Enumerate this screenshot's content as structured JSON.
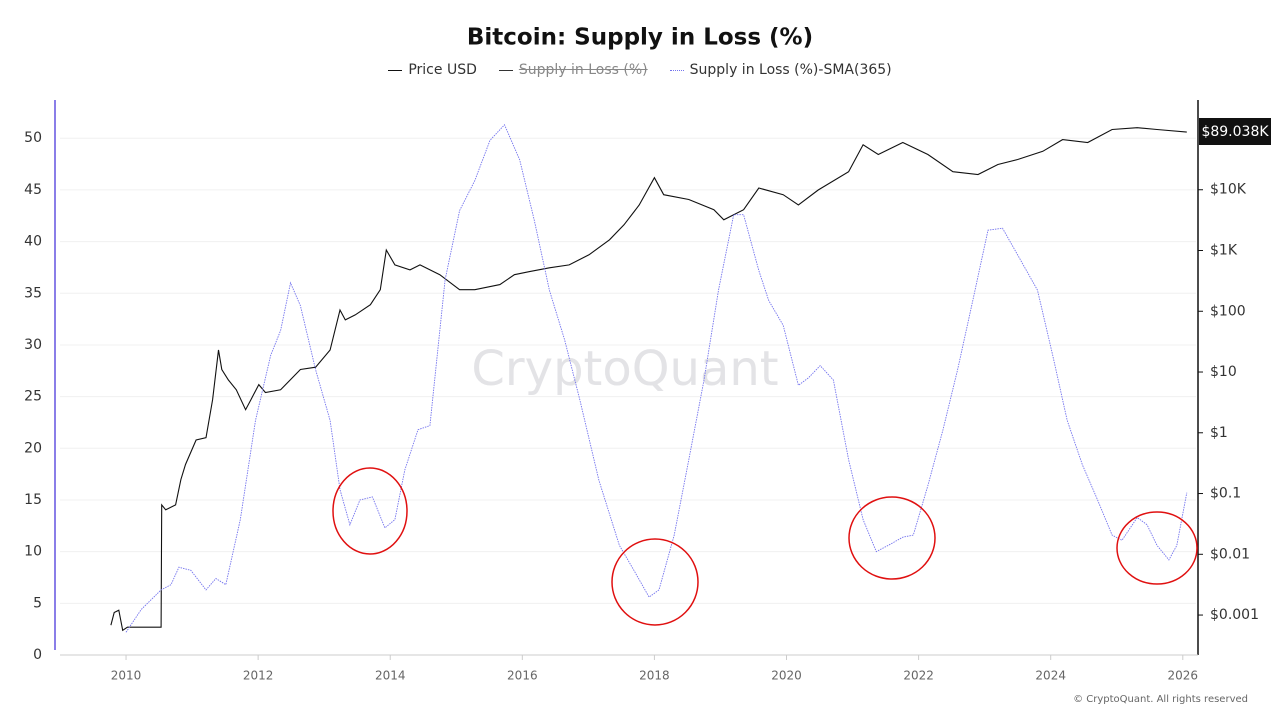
{
  "chart_data": {
    "type": "line",
    "title": "Bitcoin: Supply in Loss (%)",
    "watermark": "CryptoQuant",
    "copyright": "© CryptoQuant. All rights reserved",
    "last_price_label": "$89.038K",
    "xlim": [
      2009,
      2026.2
    ],
    "xticks": [
      2010,
      2012,
      2014,
      2016,
      2018,
      2020,
      2022,
      2024,
      2026
    ],
    "ylim": [
      0,
      53.7
    ],
    "yticks": [
      0,
      5,
      10,
      15,
      20,
      25,
      30,
      35,
      40,
      45,
      50
    ],
    "y2lim": [
      0.00022,
      300000
    ],
    "y2log": true,
    "y2ticks": [
      {
        "value": 0.001,
        "label": "$0.001"
      },
      {
        "value": 0.01,
        "label": "$0.01"
      },
      {
        "value": 0.1,
        "label": "$0.1"
      },
      {
        "value": 1,
        "label": "$1"
      },
      {
        "value": 10,
        "label": "$10"
      },
      {
        "value": 100,
        "label": "$100"
      },
      {
        "value": 1000,
        "label": "$1K"
      },
      {
        "value": 10000,
        "label": "$10K"
      }
    ],
    "grid": true,
    "series": [
      {
        "name": "Price USD",
        "color": "#111111",
        "axis": "y2",
        "x": [
          2009.77,
          2009.82,
          2009.89,
          2009.95,
          2010.02,
          2010.53,
          2010.54,
          2010.6,
          2010.75,
          2010.83,
          2010.9,
          2011.06,
          2011.21,
          2011.31,
          2011.4,
          2011.45,
          2011.55,
          2011.67,
          2011.81,
          2011.89,
          2012.01,
          2012.11,
          2012.34,
          2012.64,
          2012.87,
          2013.09,
          2013.24,
          2013.32,
          2013.47,
          2013.7,
          2013.85,
          2013.94,
          2014.07,
          2014.3,
          2014.45,
          2014.75,
          2015.05,
          2015.28,
          2015.66,
          2015.88,
          2016.11,
          2016.41,
          2016.71,
          2017.01,
          2017.32,
          2017.54,
          2017.77,
          2018.0,
          2018.14,
          2018.52,
          2018.9,
          2019.05,
          2019.35,
          2019.58,
          2019.95,
          2020.18,
          2020.48,
          2020.94,
          2021.16,
          2021.39,
          2021.76,
          2022.14,
          2022.52,
          2022.9,
          2023.2,
          2023.5,
          2023.88,
          2024.18,
          2024.56,
          2024.93,
          2025.31,
          2025.61,
          2026.06
        ],
        "values": [
          0.00068,
          0.0011,
          0.0012,
          0.00056,
          0.00063,
          0.00063,
          0.065,
          0.054,
          0.065,
          0.17,
          0.3,
          0.76,
          0.83,
          3.5,
          23,
          11,
          7.4,
          5.1,
          2.4,
          3.5,
          6.2,
          4.6,
          5.1,
          11,
          12,
          23,
          105,
          72,
          87,
          128,
          226,
          1020,
          580,
          480,
          580,
          400,
          226,
          226,
          275,
          400,
          450,
          520,
          580,
          850,
          1500,
          2650,
          5600,
          15800,
          8300,
          6900,
          4700,
          3200,
          4700,
          10700,
          8300,
          5600,
          9900,
          19800,
          55000,
          38000,
          60000,
          38000,
          19800,
          17800,
          26000,
          31500,
          43000,
          67000,
          60000,
          98000,
          105000,
          98000,
          89038
        ]
      },
      {
        "name": "Supply in Loss (%)",
        "color": "#333333",
        "visible": false
      },
      {
        "name": "Supply in Loss (%)-SMA(365)",
        "color": "#7474ee",
        "dashed": true,
        "x": [
          2010.0,
          2010.23,
          2010.53,
          2010.68,
          2010.8,
          2010.98,
          2011.21,
          2011.36,
          2011.51,
          2011.73,
          2011.96,
          2012.19,
          2012.34,
          2012.49,
          2012.64,
          2012.87,
          2013.09,
          2013.24,
          2013.39,
          2013.54,
          2013.73,
          2013.92,
          2014.07,
          2014.22,
          2014.42,
          2014.6,
          2014.83,
          2015.05,
          2015.28,
          2015.51,
          2015.73,
          2015.96,
          2016.18,
          2016.41,
          2016.64,
          2016.87,
          2017.16,
          2017.47,
          2017.69,
          2017.92,
          2018.07,
          2018.3,
          2018.52,
          2018.75,
          2018.97,
          2019.2,
          2019.35,
          2019.58,
          2019.73,
          2019.95,
          2020.18,
          2020.33,
          2020.51,
          2020.71,
          2020.94,
          2021.16,
          2021.36,
          2021.54,
          2021.76,
          2021.92,
          2022.14,
          2022.37,
          2022.59,
          2022.82,
          2023.05,
          2023.27,
          2023.5,
          2023.8,
          2024.03,
          2024.25,
          2024.48,
          2024.71,
          2024.93,
          2025.08,
          2025.31,
          2025.46,
          2025.61,
          2025.79,
          2025.91,
          2026.06
        ],
        "values": [
          2.2,
          4.4,
          6.3,
          6.8,
          8.5,
          8.2,
          6.3,
          7.4,
          6.8,
          13.1,
          22.7,
          29,
          31.4,
          36,
          33.8,
          27.6,
          22.7,
          16,
          12.6,
          15,
          15.3,
          12.3,
          13.1,
          17.9,
          21.8,
          22.2,
          36.3,
          43,
          45.9,
          49.8,
          51.3,
          47.9,
          42.1,
          35.3,
          30.5,
          24.7,
          16.9,
          10.6,
          8.2,
          5.6,
          6.3,
          11.6,
          18.9,
          26.6,
          35.3,
          42.6,
          42.6,
          37.2,
          34.3,
          31.9,
          26.1,
          26.8,
          28,
          26.6,
          18.9,
          13.1,
          10,
          10.6,
          11.4,
          11.6,
          16.4,
          21.8,
          27.6,
          34.3,
          41.1,
          41.3,
          38.7,
          35.3,
          29,
          22.7,
          18.4,
          15,
          11.6,
          11.1,
          13.3,
          12.6,
          10.6,
          9.2,
          10.6,
          15.7
        ]
      }
    ]
  }
}
